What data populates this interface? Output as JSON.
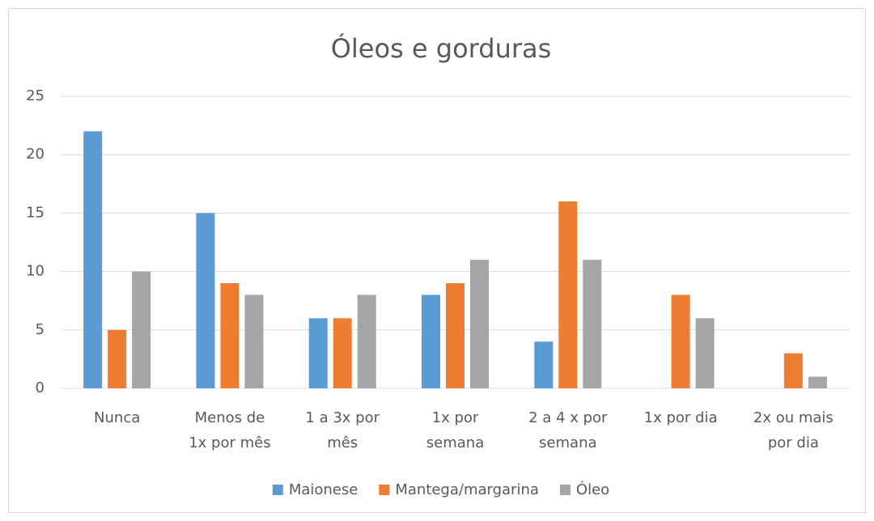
{
  "chart_data": {
    "type": "bar",
    "title": "Óleos e gorduras",
    "categories": [
      "Nunca",
      "Menos de\n1x por mês",
      "1 a 3x por\nmês",
      "1x por\nsemana",
      "2 a 4 x por\nsemana",
      "1x por dia",
      "2x ou mais\npor dia"
    ],
    "series": [
      {
        "name": "Maionese",
        "color": "#5b9bd5",
        "values": [
          22,
          15,
          6,
          8,
          4,
          0,
          0
        ]
      },
      {
        "name": "Mantega/margarina",
        "color": "#ed7d31",
        "values": [
          5,
          9,
          6,
          9,
          16,
          8,
          3
        ]
      },
      {
        "name": "Óleo",
        "color": "#a5a5a5",
        "values": [
          10,
          8,
          8,
          11,
          11,
          6,
          1
        ]
      }
    ],
    "ylim": [
      0,
      25
    ],
    "yticks": [
      0,
      5,
      10,
      15,
      20,
      25
    ],
    "grid": true,
    "legend": "bottom"
  }
}
